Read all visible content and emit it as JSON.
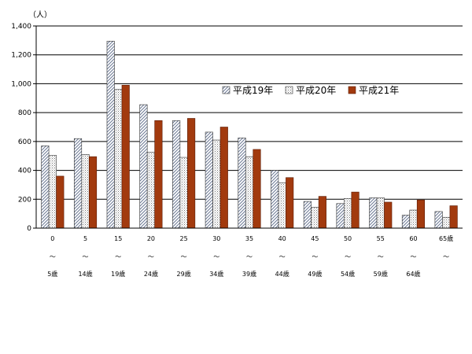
{
  "chart_data": {
    "type": "bar",
    "unit_label": "（人）",
    "ylim": [
      0,
      1400
    ],
    "yticks": [
      "0",
      "200",
      "400",
      "600",
      "800",
      "1,000",
      "1,200",
      "1,400"
    ],
    "grid": true,
    "legend_position": "top-right",
    "categories": [
      {
        "start": "0",
        "sep": "～",
        "end": "5歳"
      },
      {
        "start": "5",
        "sep": "～",
        "end": "14歳"
      },
      {
        "start": "15",
        "sep": "～",
        "end": "19歳"
      },
      {
        "start": "20",
        "sep": "～",
        "end": "24歳"
      },
      {
        "start": "25",
        "sep": "～",
        "end": "29歳"
      },
      {
        "start": "30",
        "sep": "～",
        "end": "34歳"
      },
      {
        "start": "35",
        "sep": "～",
        "end": "39歳"
      },
      {
        "start": "40",
        "sep": "～",
        "end": "44歳"
      },
      {
        "start": "45",
        "sep": "～",
        "end": "49歳"
      },
      {
        "start": "50",
        "sep": "～",
        "end": "54歳"
      },
      {
        "start": "55",
        "sep": "～",
        "end": "59歳"
      },
      {
        "start": "60",
        "sep": "～",
        "end": "64歳"
      },
      {
        "start": "65歳",
        "sep": "～",
        "end": ""
      }
    ],
    "series": [
      {
        "name": "平成19年",
        "pattern": "diagonal",
        "color": "#5a6a8a",
        "values": [
          570,
          620,
          1295,
          855,
          745,
          665,
          625,
          400,
          185,
          170,
          210,
          90,
          115
        ]
      },
      {
        "name": "平成20年",
        "pattern": "dots",
        "color": "#8a8a8a",
        "values": [
          505,
          510,
          960,
          525,
          490,
          610,
          495,
          315,
          145,
          205,
          210,
          125,
          75
        ]
      },
      {
        "name": "平成21年",
        "pattern": "solid",
        "color": "#a23a0e",
        "values": [
          360,
          495,
          990,
          745,
          760,
          700,
          545,
          350,
          220,
          250,
          180,
          195,
          155
        ]
      }
    ]
  }
}
